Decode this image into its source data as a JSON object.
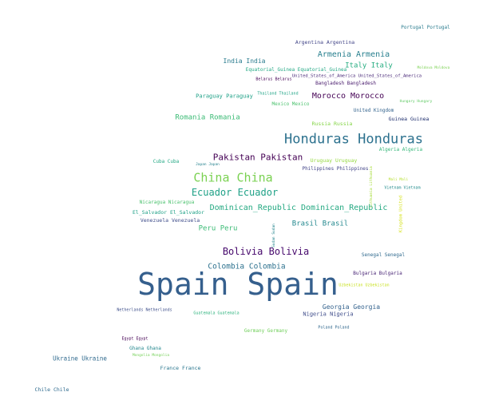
{
  "words": [
    {
      "text": "Spain Spain",
      "color": "#355f8d"
    },
    {
      "text": "Honduras Honduras",
      "color": "#2c718e"
    },
    {
      "text": "China China",
      "color": "#7ad151"
    },
    {
      "text": "Ecuador Ecuador",
      "color": "#1fa187"
    },
    {
      "text": "Bolivia Bolivia",
      "color": "#46086c"
    },
    {
      "text": "Pakistan Pakistan",
      "color": "#440154"
    },
    {
      "text": "Dominican_Republic Dominican_Republic",
      "color": "#25a982"
    },
    {
      "text": "Armenia Armenia",
      "color": "#277f8e"
    },
    {
      "text": "Morocco Morocco",
      "color": "#440154"
    },
    {
      "text": "Colombia Colombia",
      "color": "#2c718e"
    },
    {
      "text": "Romania Romania",
      "color": "#3bbb75"
    },
    {
      "text": "Peru Peru",
      "color": "#3bbb75"
    },
    {
      "text": "Brasil Brasil",
      "color": "#23888e"
    },
    {
      "text": "Italy Italy",
      "color": "#27ad81"
    },
    {
      "text": "India India",
      "color": "#297b8e"
    },
    {
      "text": "Georgia Georgia",
      "color": "#33628d"
    },
    {
      "text": "Nigeria Nigeria",
      "color": "#3e4c8a"
    },
    {
      "text": "Ukraine Ukraine",
      "color": "#306a8e"
    },
    {
      "text": "Argentina Argentina",
      "color": "#414487"
    },
    {
      "text": "Portugal Portugal",
      "color": "#297b8e"
    },
    {
      "text": "Equatorial_Guinea Equatorial_Guinea",
      "color": "#22a884"
    },
    {
      "text": "United_States_of_America United_States_of_America",
      "color": "#482878"
    },
    {
      "text": "Bangladesh Bangladesh",
      "color": "#481a6c"
    },
    {
      "text": "Belarus Belarus",
      "color": "#440154"
    },
    {
      "text": "Moldova Moldova",
      "color": "#7ad151"
    },
    {
      "text": "Paraguay Paraguay",
      "color": "#1fa187"
    },
    {
      "text": "Thailand Thailand",
      "color": "#20a486"
    },
    {
      "text": "Mexico Mexico",
      "color": "#4ac16d"
    },
    {
      "text": "United Kingdom",
      "color": "#33638d"
    },
    {
      "text": "Hungary Hungary",
      "color": "#5ec962"
    },
    {
      "text": "Guinea Guinea",
      "color": "#1f2f6e"
    },
    {
      "text": "Russia Russia",
      "color": "#86d549"
    },
    {
      "text": "Algeria Algeria",
      "color": "#35b779"
    },
    {
      "text": "Cuba Cuba",
      "color": "#22a884"
    },
    {
      "text": "Japan Japan",
      "color": "#26828e"
    },
    {
      "text": "Uruguay Uruguay",
      "color": "#95d840"
    },
    {
      "text": "Philippines Philippines",
      "color": "#404387"
    },
    {
      "text": "Lithuania Lithuania",
      "color": "#a5db36"
    },
    {
      "text": "Mali Mali",
      "color": "#b5de2b"
    },
    {
      "text": "Vietnam Vietnam",
      "color": "#228c8d"
    },
    {
      "text": "Kingdom United",
      "color": "#d5e21a"
    },
    {
      "text": "Nicaragua Nicaragua",
      "color": "#4ac16d"
    },
    {
      "text": "El_Salvador El_Salvador",
      "color": "#1fa187"
    },
    {
      "text": "Venezuela Venezuela",
      "color": "#3e4c8a"
    },
    {
      "text": "Sudan Sudan",
      "color": "#25858e"
    },
    {
      "text": "Senegal Senegal",
      "color": "#306a8e"
    },
    {
      "text": "Bulgaria Bulgaria",
      "color": "#482475"
    },
    {
      "text": "Uzbekistan Uzbekistan",
      "color": "#c8e020"
    },
    {
      "text": "Netherlands Netherlands",
      "color": "#3d4e8a"
    },
    {
      "text": "Guatemala Guatemala",
      "color": "#2db27d"
    },
    {
      "text": "Germany Germany",
      "color": "#6ece58"
    },
    {
      "text": "Poland Poland",
      "color": "#31688e"
    },
    {
      "text": "Egypt Egypt",
      "color": "#440154"
    },
    {
      "text": "Ghana Ghana",
      "color": "#24878e"
    },
    {
      "text": "Mongolia Mongolia",
      "color": "#73d056"
    },
    {
      "text": "France France",
      "color": "#2a768e"
    },
    {
      "text": "Chile Chile",
      "color": "#2f6b8e"
    }
  ]
}
